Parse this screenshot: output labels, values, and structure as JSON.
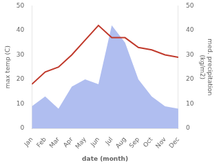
{
  "chart_data": {
    "type": "line",
    "categories": [
      "Jan",
      "Feb",
      "Mar",
      "Apr",
      "May",
      "Jun",
      "Jul",
      "Aug",
      "Sep",
      "Oct",
      "Nov",
      "Dec"
    ],
    "series": [
      {
        "type": "area",
        "color": "#b0bef0",
        "values": [
          9,
          13,
          8,
          17,
          20,
          18,
          42,
          35,
          20,
          13,
          9,
          8
        ],
        "axis": "y2"
      },
      {
        "type": "line",
        "color": "#c0392b",
        "values": [
          18,
          23,
          25,
          30,
          36,
          42,
          37,
          37,
          33,
          32,
          30,
          29
        ]
      }
    ],
    "xlabel": "date (month)",
    "ylabel": "max temp (C)",
    "y2label": "med. precipitation\n(kg/m2)",
    "ylim": [
      0,
      50
    ],
    "yticks": [
      0,
      10,
      20,
      30,
      40,
      50
    ],
    "y2lim": [
      0,
      50
    ],
    "y2ticks": [
      0,
      10,
      20,
      30,
      40,
      50
    ],
    "grid": false,
    "legend": false
  }
}
